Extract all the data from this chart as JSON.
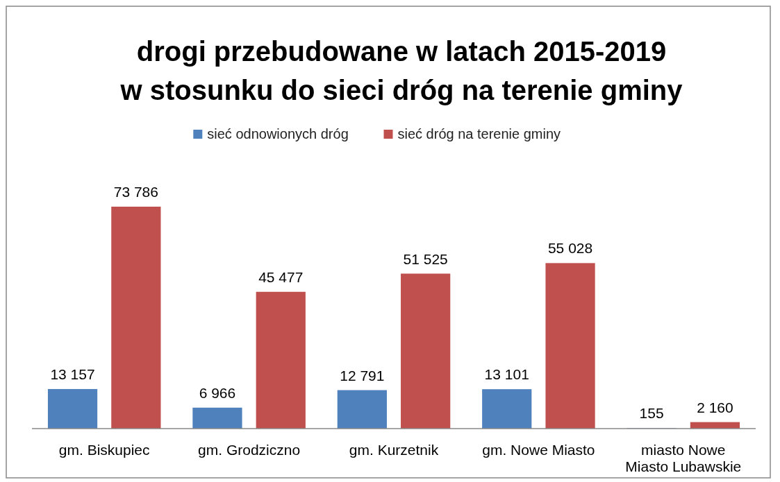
{
  "chart_data": {
    "type": "bar",
    "title": "drogi przebudowane w latach 2015-2019\nw stosunku do sieci dróg na terenie gminy",
    "categories": [
      "gm. Biskupiec",
      "gm. Grodziczno",
      "gm. Kurzetnik",
      "gm. Nowe Miasto",
      "miasto Nowe Miasto Lubawskie"
    ],
    "series": [
      {
        "name": "sieć odnowionych dróg",
        "color": "#4f81bd",
        "values": [
          13157,
          6966,
          12791,
          13101,
          155
        ]
      },
      {
        "name": "sieć dróg na terenie gminy",
        "color": "#c0504d",
        "values": [
          73786,
          45477,
          51525,
          55028,
          2160
        ]
      }
    ],
    "data_labels": true,
    "legend": "top"
  }
}
